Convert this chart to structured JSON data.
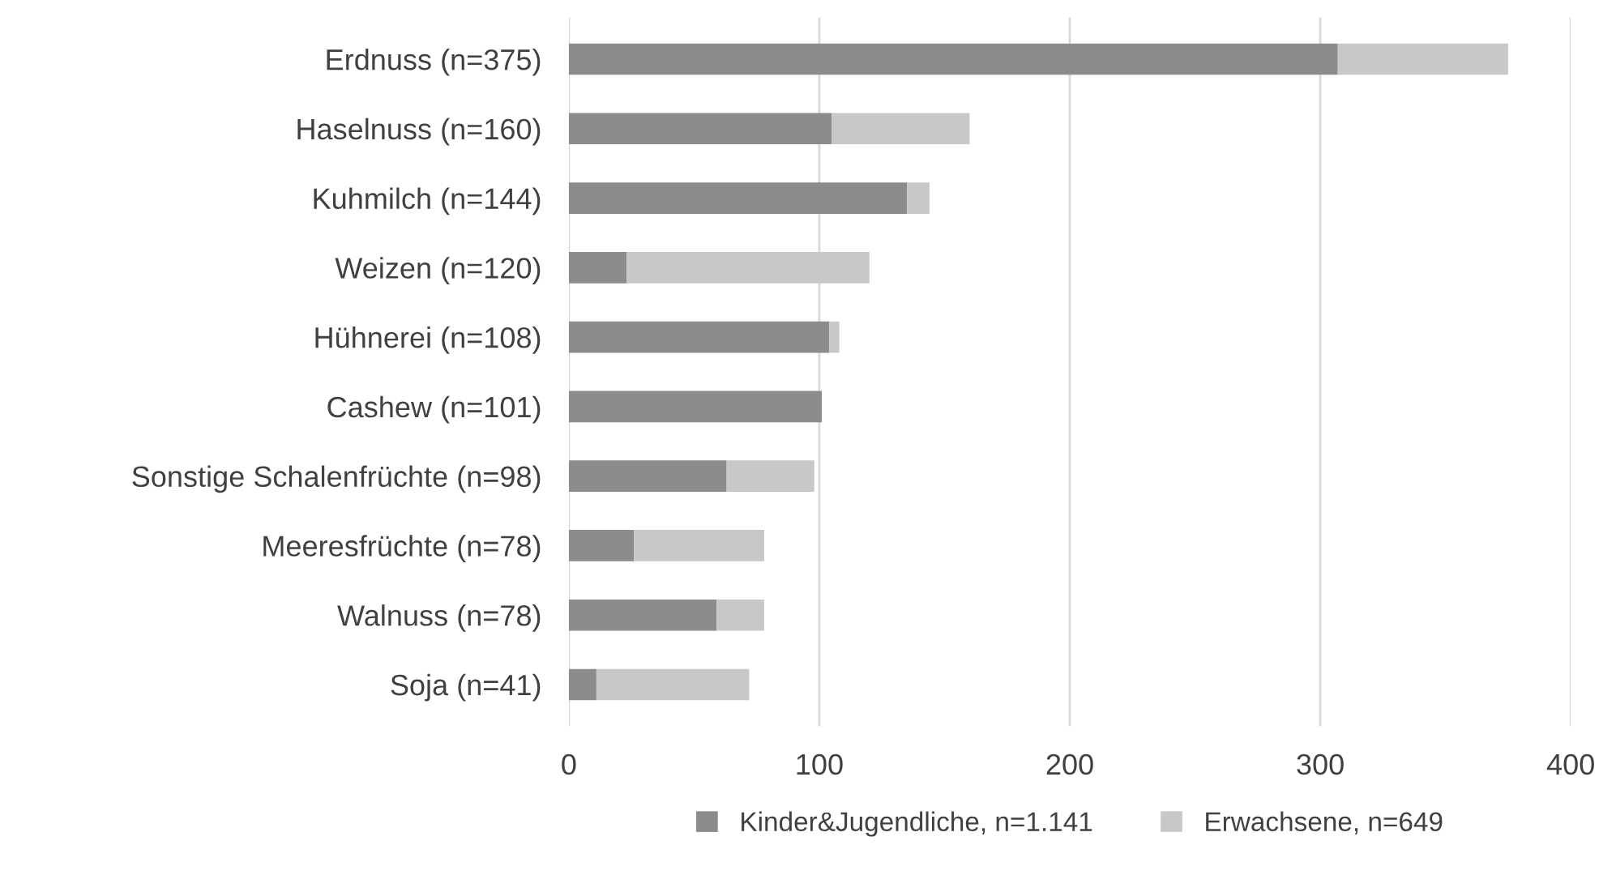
{
  "chart_data": {
    "type": "bar",
    "orientation": "horizontal",
    "stacked": true,
    "categories": [
      "Erdnuss (n=375)",
      "Haselnuss (n=160)",
      "Kuhmilch (n=144)",
      "Weizen (n=120)",
      "Hühnerei (n=108)",
      "Cashew (n=101)",
      "Sonstige Schalenfrüchte (n=98)",
      "Meeresfrüchte (n=78)",
      "Walnuss (n=78)",
      "Soja (n=41)"
    ],
    "series": [
      {
        "name": "Kinder&Jugendliche, n=1.141",
        "color": "#8c8c8c",
        "values": [
          307,
          105,
          135,
          23,
          104,
          101,
          63,
          26,
          59,
          11
        ]
      },
      {
        "name": "Erwachsene, n=649",
        "color": "#c8c8c8",
        "values": [
          68,
          55,
          9,
          97,
          4,
          0,
          35,
          52,
          19,
          61
        ]
      }
    ],
    "xlim": [
      0,
      400
    ],
    "xticks": [
      0,
      100,
      200,
      300,
      400
    ],
    "grid": "x",
    "legend": "bottom"
  }
}
